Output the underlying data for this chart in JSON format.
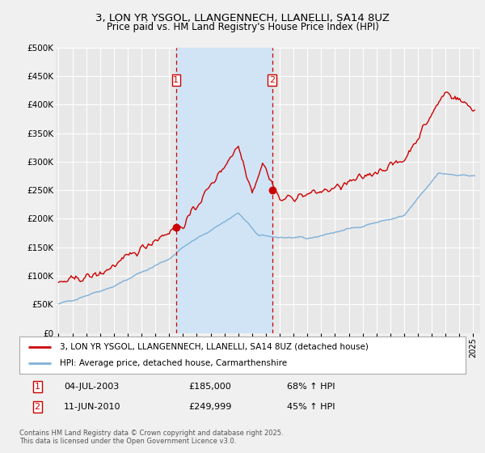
{
  "title": "3, LON YR YSGOL, LLANGENNECH, LLANELLI, SA14 8UZ",
  "subtitle": "Price paid vs. HM Land Registry's House Price Index (HPI)",
  "ylim": [
    0,
    500000
  ],
  "yticks": [
    0,
    50000,
    100000,
    150000,
    200000,
    250000,
    300000,
    350000,
    400000,
    450000,
    500000
  ],
  "ytick_labels": [
    "£0",
    "£50K",
    "£100K",
    "£150K",
    "£200K",
    "£250K",
    "£300K",
    "£350K",
    "£400K",
    "£450K",
    "£500K"
  ],
  "background_color": "#f0f0f0",
  "plot_bg_color": "#e8e8e8",
  "grid_color": "#ffffff",
  "hpi_color": "#7fb0d8",
  "price_color": "#cc0000",
  "shade_color": "#d0e4f5",
  "sale1_date": 2003.5,
  "sale1_price": 185000,
  "sale1_label": "04-JUL-2003",
  "sale1_amount": "£185,000",
  "sale1_pct": "68% ↑ HPI",
  "sale2_date": 2010.45,
  "sale2_price": 249999,
  "sale2_label": "11-JUN-2010",
  "sale2_amount": "£249,999",
  "sale2_pct": "45% ↑ HPI",
  "legend_line1": "3, LON YR YSGOL, LLANGENNECH, LLANELLI, SA14 8UZ (detached house)",
  "legend_line2": "HPI: Average price, detached house, Carmarthenshire",
  "footnote": "Contains HM Land Registry data © Crown copyright and database right 2025.\nThis data is licensed under the Open Government Licence v3.0.",
  "title_fontsize": 9.5,
  "subtitle_fontsize": 8.5
}
